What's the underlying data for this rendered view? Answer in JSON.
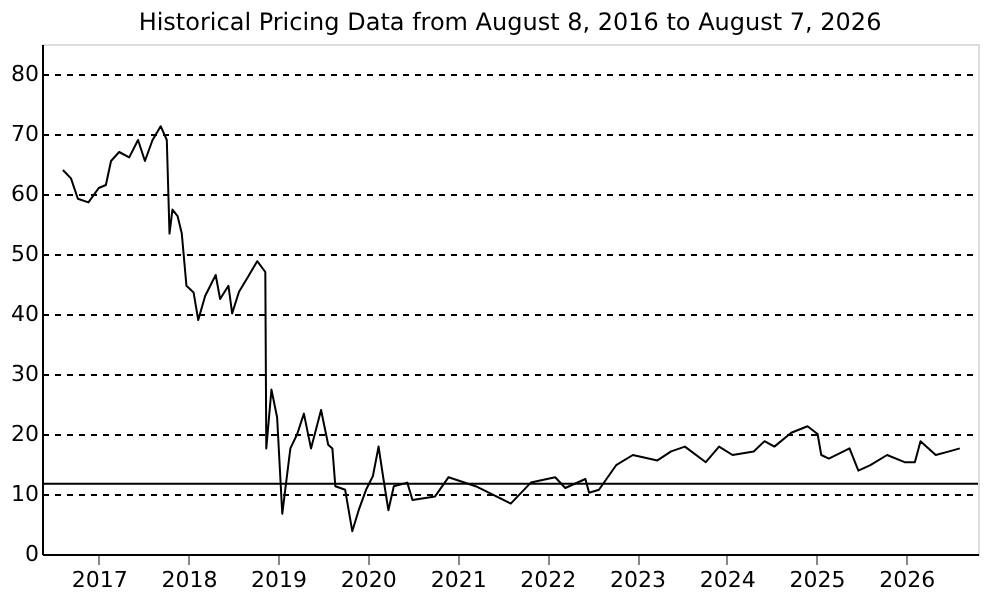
{
  "chart_data": {
    "type": "line",
    "title": "Historical Pricing Data from August 8, 2016 to August 7, 2026",
    "x": [
      "2016-08-08",
      "2016-09-10",
      "2016-10-08",
      "2016-11-20",
      "2017-01-01",
      "2017-01-30",
      "2017-02-20",
      "2017-03-25",
      "2017-05-05",
      "2017-06-10",
      "2017-07-08",
      "2017-08-08",
      "2017-09-10",
      "2017-10-05",
      "2017-10-16",
      "2017-10-28",
      "2017-11-18",
      "2017-12-05",
      "2017-12-24",
      "2018-01-22",
      "2018-02-10",
      "2018-03-10",
      "2018-04-22",
      "2018-05-10",
      "2018-06-13",
      "2018-06-28",
      "2018-07-26",
      "2018-09-05",
      "2018-10-08",
      "2018-11-10",
      "2018-11-14",
      "2018-12-05",
      "2018-12-28",
      "2019-01-18",
      "2019-02-20",
      "2019-03-20",
      "2019-04-16",
      "2019-05-15",
      "2019-06-25",
      "2019-07-24",
      "2019-08-10",
      "2019-08-22",
      "2019-10-01",
      "2019-10-30",
      "2019-11-25",
      "2019-12-25",
      "2020-01-22",
      "2020-02-14",
      "2020-03-03",
      "2020-03-25",
      "2020-04-16",
      "2020-06-10",
      "2020-07-01",
      "2020-10-01",
      "2020-11-25",
      "2021-03-15",
      "2021-08-05",
      "2021-10-26",
      "2022-02-02",
      "2022-03-15",
      "2022-06-05",
      "2022-06-20",
      "2022-07-30",
      "2022-10-08",
      "2022-12-15",
      "2023-03-25",
      "2023-05-20",
      "2023-07-15",
      "2023-10-08",
      "2023-12-01",
      "2024-01-25",
      "2024-04-20",
      "2024-06-03",
      "2024-07-13",
      "2024-09-20",
      "2024-11-25",
      "2025-01-05",
      "2025-01-20",
      "2025-02-20",
      "2025-05-15",
      "2025-06-20",
      "2025-08-08",
      "2025-10-15",
      "2025-12-25",
      "2026-02-05",
      "2026-02-28",
      "2026-05-01",
      "2026-06-25",
      "2026-08-07"
    ],
    "series": [
      {
        "color": "#000000",
        "values": [
          64.0,
          62.6,
          59.2,
          58.6,
          61.0,
          61.5,
          65.5,
          67.0,
          66.1,
          69.0,
          65.5,
          69.0,
          71.3,
          69.0,
          53.4,
          57.4,
          56.3,
          53.4,
          44.7,
          43.6,
          39.0,
          43.0,
          46.5,
          42.5,
          44.7,
          40.1,
          43.7,
          46.5,
          48.8,
          47.0,
          17.6,
          27.4,
          22.8,
          6.7,
          17.6,
          20.0,
          23.4,
          17.6,
          24.0,
          18.2,
          17.6,
          11.3,
          10.7,
          3.8,
          7.3,
          10.7,
          13.0,
          17.9,
          13.0,
          7.3,
          11.3,
          11.9,
          9.0,
          9.6,
          12.8,
          11.3,
          8.4,
          11.9,
          12.8,
          11.0,
          12.5,
          10.2,
          10.7,
          14.8,
          16.5,
          15.6,
          17.1,
          17.9,
          15.3,
          17.9,
          16.5,
          17.1,
          18.8,
          17.9,
          20.2,
          21.3,
          20.0,
          16.5,
          15.9,
          17.6,
          13.9,
          14.8,
          16.5,
          15.3,
          15.3,
          18.8,
          16.5,
          17.1,
          17.6
        ]
      }
    ],
    "xlim": [
      "2016-05-15",
      "2026-10-20"
    ],
    "xticks": [
      {
        "value": "2017-01-01",
        "label": "2017"
      },
      {
        "value": "2018-01-01",
        "label": "2018"
      },
      {
        "value": "2019-01-01",
        "label": "2019"
      },
      {
        "value": "2020-01-01",
        "label": "2020"
      },
      {
        "value": "2021-01-01",
        "label": "2021"
      },
      {
        "value": "2022-01-01",
        "label": "2022"
      },
      {
        "value": "2023-01-01",
        "label": "2023"
      },
      {
        "value": "2024-01-01",
        "label": "2024"
      },
      {
        "value": "2025-01-01",
        "label": "2025"
      },
      {
        "value": "2026-01-01",
        "label": "2026"
      }
    ],
    "ylim": [
      0,
      85
    ],
    "yticks": [
      0,
      10,
      20,
      30,
      40,
      50,
      60,
      70,
      80
    ],
    "ref_lines": [
      {
        "axis": "y",
        "value": 11.7,
        "color": "#000000",
        "line_style": "solid"
      }
    ],
    "grid": "y",
    "marker": "none",
    "line_style": "solid"
  }
}
